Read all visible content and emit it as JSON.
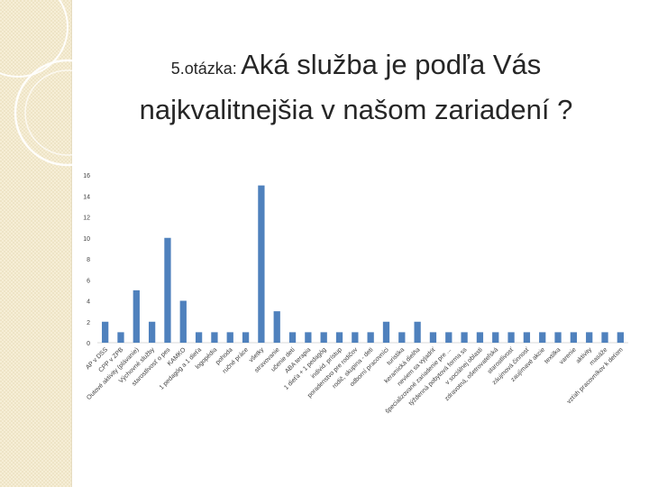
{
  "title": {
    "prefix": "5.otázka:",
    "line1": "Aká služba je podľa Vás",
    "line2": "najkvalitnejšia v našom zariadení ?"
  },
  "colors": {
    "bar": "#4f81bd",
    "grid": "#d9d9d9",
    "axis_text": "#404040",
    "title_text": "#262626",
    "side_panel": "#f6eed6"
  },
  "chart_data": {
    "type": "bar",
    "title": "",
    "xlabel": "",
    "ylabel": "",
    "ylim": [
      0,
      16
    ],
    "yticks": [
      0,
      2,
      4,
      6,
      8,
      10,
      12,
      14,
      16
    ],
    "grid": false,
    "legend": "none",
    "categories": [
      "AP v DSS",
      "CPP v ZPB",
      "Outové aktivity (plávanie)",
      "Výchovné služby",
      "starostlivosť o pes",
      "KAMKO",
      "1 pedagóg a 1 dieťa",
      "logopédia",
      "pohoda",
      "ručné práce",
      "všetky",
      "stravovanie",
      "učenie detí",
      "ABA terapia",
      "1 dieťa + 1 pedagóg",
      "individ. prístup",
      "poradenstvo pre rodičov",
      "rodič, skupina - deti",
      "odborní pracovníci",
      "turistika",
      "keramická dielňa",
      "neviem sa vyjadriť",
      "špecializované zariadenie pre ...",
      "týždenná pobytová forma ss",
      "v sociálnej oblasti",
      "zdravotná, ošetrovateľská",
      "starostlivosť",
      "záujmová činnosť",
      "zaujímavé akcie",
      "textilka",
      "varenie",
      "aktivity",
      "masáže",
      "vzťah pracovníkov k deťom"
    ],
    "values": [
      2,
      1,
      5,
      2,
      10,
      4,
      1,
      1,
      1,
      1,
      15,
      3,
      1,
      1,
      1,
      1,
      1,
      1,
      2,
      1,
      2,
      1,
      1,
      1,
      1,
      1,
      1,
      1,
      1,
      1,
      1,
      1,
      1,
      1
    ]
  }
}
